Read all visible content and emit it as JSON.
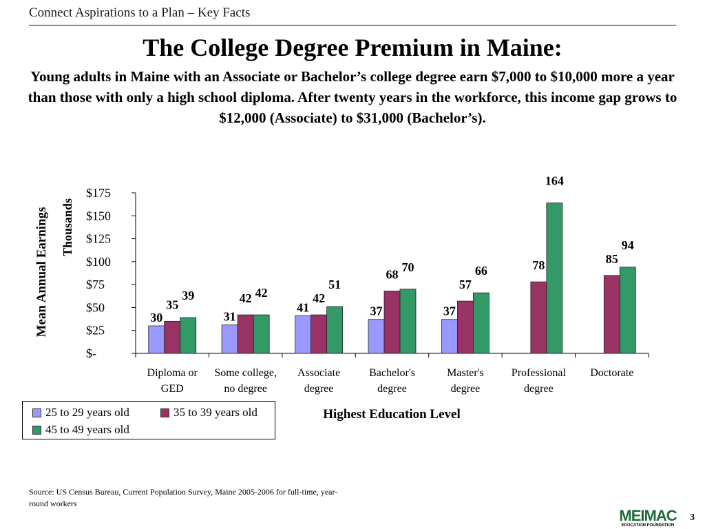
{
  "header": {
    "text": "Connect Aspirations to a Plan – Key Facts"
  },
  "title": "The College Degree Premium in Maine:",
  "subtitle": "Young adults in Maine with an Associate or Bachelor’s college degree earn $7,000 to $10,000 more a year than those with only a high school diploma.  After twenty years in the workforce, this income gap grows to $12,000 (Associate) to $31,000 (Bachelor’s).",
  "chart_data": {
    "type": "bar",
    "ylabel": "Mean Annual Earnings",
    "yunit": "Thousands",
    "xlabel": "Highest Education Level",
    "ylim": [
      0,
      175
    ],
    "yticks": [
      0,
      25,
      50,
      75,
      100,
      125,
      150,
      175
    ],
    "ytick_labels": [
      "$-",
      "$25",
      "$50",
      "$75",
      "$100",
      "$125",
      "$150",
      "$175"
    ],
    "categories": [
      [
        "Diploma or",
        "GED"
      ],
      [
        "Some college,",
        "no degree"
      ],
      [
        "Associate",
        "degree"
      ],
      [
        "Bachelor's",
        "degree"
      ],
      [
        "Master's",
        "degree"
      ],
      [
        "Professional",
        "degree"
      ],
      [
        "Doctorate"
      ]
    ],
    "series": [
      {
        "name": "25 to 29 years old",
        "color": "#9999ff",
        "values": [
          30,
          31,
          41,
          37,
          37,
          null,
          null
        ]
      },
      {
        "name": "35 to 39 years old",
        "color": "#993366",
        "values": [
          35,
          42,
          42,
          68,
          57,
          78,
          85
        ]
      },
      {
        "name": "45 to 49 years old",
        "color": "#339966",
        "values": [
          39,
          42,
          51,
          70,
          66,
          164,
          94
        ]
      }
    ],
    "grid": false,
    "legend_position": "bottom-left"
  },
  "source": "Source: US Census Bureau, Current Population Survey, Maine 2005-2006 for full-time, year-round workers",
  "logo": {
    "main": "MEIMAC",
    "sub": "EDUCATION FOUNDATION",
    "color": "#1f6b3a"
  },
  "page_number": "3"
}
